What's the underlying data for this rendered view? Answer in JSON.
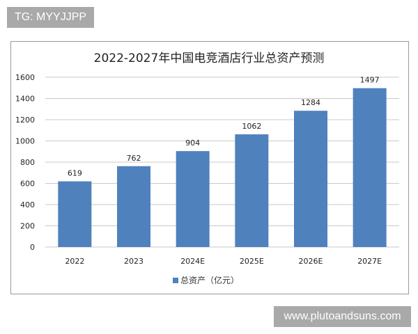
{
  "watermarks": {
    "top_left": "TG: MYYJJPP",
    "bottom_right": "www.plutoandsuns.com"
  },
  "chart_data": {
    "type": "bar",
    "title": "2022-2027年中国电竞酒店行业总资产预测",
    "categories": [
      "2022",
      "2023",
      "2024E",
      "2025E",
      "2026E",
      "2027E"
    ],
    "series": [
      {
        "name": "总资产（亿元）",
        "values": [
          619,
          762,
          904,
          1062,
          1284,
          1497
        ],
        "color": "#4f81bd"
      }
    ],
    "data_labels": [
      "619",
      "762",
      "904",
      "1062",
      "1284",
      "1497"
    ],
    "yticks": [
      0,
      200,
      400,
      600,
      800,
      1000,
      1200,
      1400,
      1600
    ],
    "ylim": [
      0,
      1600
    ],
    "grid": true,
    "legend": "bottom",
    "xlabel": "",
    "ylabel": ""
  }
}
